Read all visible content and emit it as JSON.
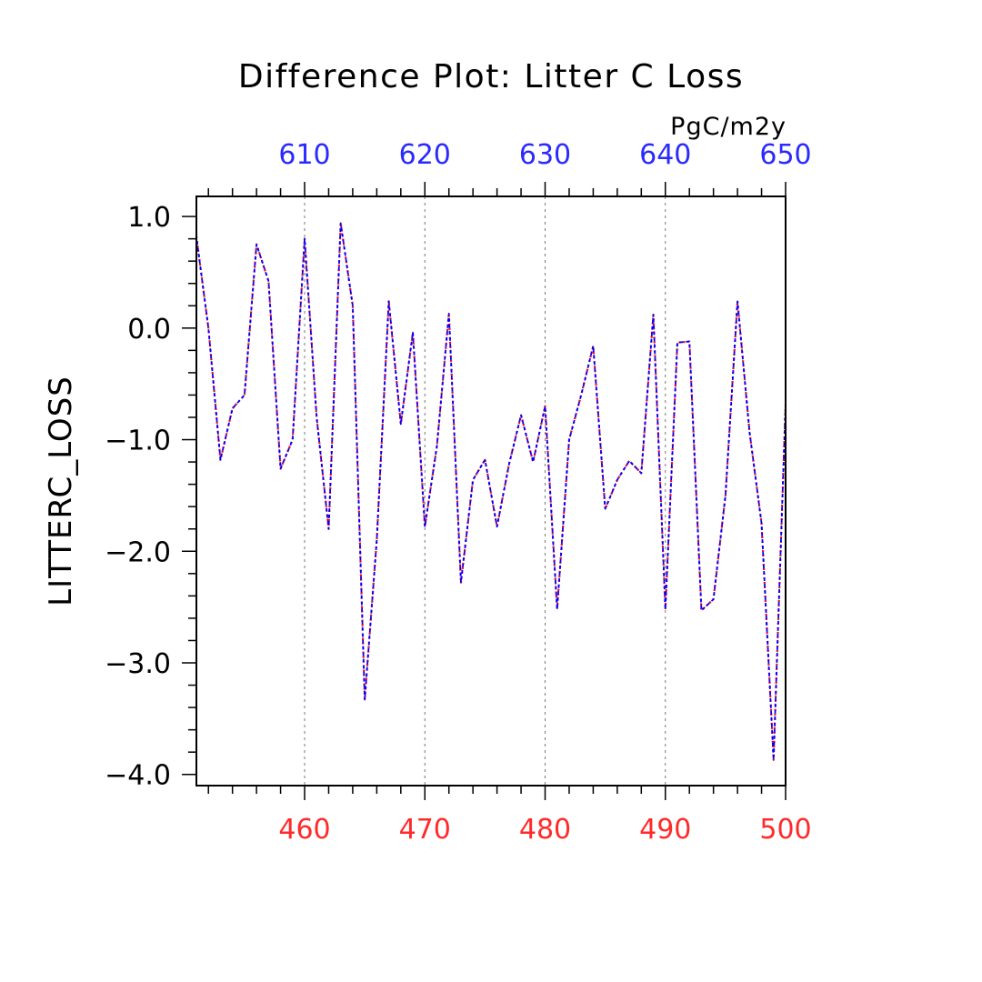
{
  "chart_data": {
    "type": "line",
    "title": "Difference Plot: Litter C Loss",
    "units": "PgC/m2y",
    "ylabel": "LITTERC_LOSS",
    "ylim": [
      -4.1,
      1.18
    ],
    "yticks": [
      1.0,
      0.0,
      -1.0,
      -2.0,
      -3.0,
      -4.0
    ],
    "ytick_labels": [
      "1.0",
      "0.0",
      "−1.0",
      "−2.0",
      "−3.0",
      "−4.0"
    ],
    "y_minor_step": 0.2,
    "grid": "dashed-vertical-at-major-x-ticks",
    "x_bottom": {
      "range": [
        451,
        500
      ],
      "ticks": [
        460,
        470,
        480,
        490,
        500
      ],
      "tick_labels": [
        "460",
        "470",
        "480",
        "490",
        "500"
      ],
      "color": "#ff2a2a"
    },
    "x_top": {
      "range": [
        601,
        650
      ],
      "ticks": [
        610,
        620,
        630,
        640,
        650
      ],
      "tick_labels": [
        "610",
        "620",
        "630",
        "640",
        "650"
      ],
      "color": "#2a2aff"
    },
    "series": [
      {
        "color": "#ff0000",
        "style": "dotted",
        "x": [
          451,
          452,
          453,
          454,
          455,
          456,
          457,
          458,
          459,
          460,
          461,
          462,
          463,
          464,
          465,
          466,
          467,
          468,
          469,
          470,
          471,
          472,
          473,
          474,
          475,
          476,
          477,
          478,
          479,
          480,
          481,
          482,
          483,
          484,
          485,
          486,
          487,
          488,
          489,
          490,
          491,
          492,
          493,
          494,
          495,
          496,
          497,
          498,
          499,
          500
        ],
        "values": [
          0.82,
          0.0,
          -1.18,
          -0.72,
          -0.6,
          0.75,
          0.42,
          -1.26,
          -1.0,
          0.8,
          -0.8,
          -1.8,
          0.94,
          0.2,
          -3.33,
          -1.9,
          0.24,
          -0.86,
          -0.04,
          -1.78,
          -1.06,
          0.13,
          -2.28,
          -1.36,
          -1.18,
          -1.78,
          -1.22,
          -0.78,
          -1.2,
          -0.7,
          -2.52,
          -1.0,
          -0.6,
          -0.16,
          -1.62,
          -1.36,
          -1.19,
          -1.3,
          0.12,
          -2.52,
          -0.13,
          -0.12,
          -2.53,
          -2.43,
          -1.5,
          0.24,
          -0.93,
          -1.75,
          -3.87,
          -0.68
        ]
      },
      {
        "color": "#0000ff",
        "style": "dashed",
        "x": [
          601,
          602,
          603,
          604,
          605,
          606,
          607,
          608,
          609,
          610,
          611,
          612,
          613,
          614,
          615,
          616,
          617,
          618,
          619,
          620,
          621,
          622,
          623,
          624,
          625,
          626,
          627,
          628,
          629,
          630,
          631,
          632,
          633,
          634,
          635,
          636,
          637,
          638,
          639,
          640,
          641,
          642,
          643,
          644,
          645,
          646,
          647,
          648,
          649,
          650
        ],
        "values": [
          0.82,
          0.0,
          -1.18,
          -0.72,
          -0.6,
          0.75,
          0.42,
          -1.26,
          -1.0,
          0.8,
          -0.8,
          -1.8,
          0.94,
          0.2,
          -3.33,
          -1.9,
          0.24,
          -0.86,
          -0.04,
          -1.78,
          -1.06,
          0.13,
          -2.28,
          -1.36,
          -1.18,
          -1.78,
          -1.22,
          -0.78,
          -1.2,
          -0.7,
          -2.52,
          -1.0,
          -0.6,
          -0.16,
          -1.62,
          -1.36,
          -1.19,
          -1.3,
          0.12,
          -2.52,
          -0.13,
          -0.12,
          -2.53,
          -2.43,
          -1.5,
          0.24,
          -0.93,
          -1.75,
          -3.87,
          -0.68
        ]
      }
    ]
  }
}
